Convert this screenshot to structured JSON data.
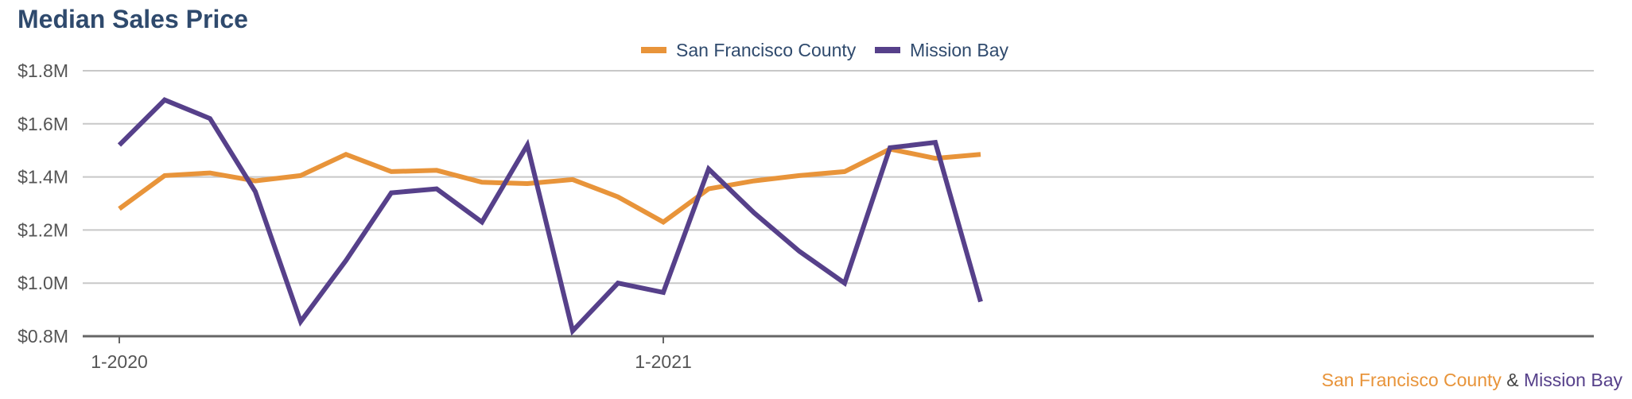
{
  "chart_data": {
    "type": "line",
    "title": "Median Sales Price",
    "x": [
      "1-2020",
      "2-2020",
      "3-2020",
      "4-2020",
      "5-2020",
      "6-2020",
      "7-2020",
      "8-2020",
      "9-2020",
      "10-2020",
      "11-2020",
      "12-2020",
      "1-2021",
      "2-2021",
      "3-2021",
      "4-2021",
      "5-2021",
      "6-2021",
      "7-2021",
      "8-2021"
    ],
    "x_tick_labels": [
      "1-2020",
      "1-2021"
    ],
    "y_ticks": [
      "$0.8M",
      "$1.0M",
      "$1.2M",
      "$1.4M",
      "$1.6M",
      "$1.8M"
    ],
    "ylim": [
      0.8,
      1.8
    ],
    "y_unit": "$M",
    "grid": true,
    "legend_position": "top-center",
    "series": [
      {
        "name": "San Francisco County",
        "color": "#e8943a",
        "values": [
          1.28,
          1.405,
          1.415,
          1.385,
          1.405,
          1.485,
          1.42,
          1.425,
          1.38,
          1.375,
          1.39,
          1.325,
          1.23,
          1.355,
          1.385,
          1.405,
          1.42,
          1.505,
          1.47,
          1.485
        ]
      },
      {
        "name": "Mission Bay",
        "color": "#56408a",
        "values": [
          1.52,
          1.69,
          1.62,
          1.345,
          0.855,
          1.085,
          1.34,
          1.355,
          1.23,
          1.52,
          0.82,
          1.0,
          0.965,
          1.43,
          1.265,
          1.12,
          1.0,
          1.51,
          1.53,
          0.93
        ]
      }
    ]
  },
  "footer": {
    "series_a": "San Francisco County",
    "amp": "&",
    "series_b": "Mission Bay"
  }
}
